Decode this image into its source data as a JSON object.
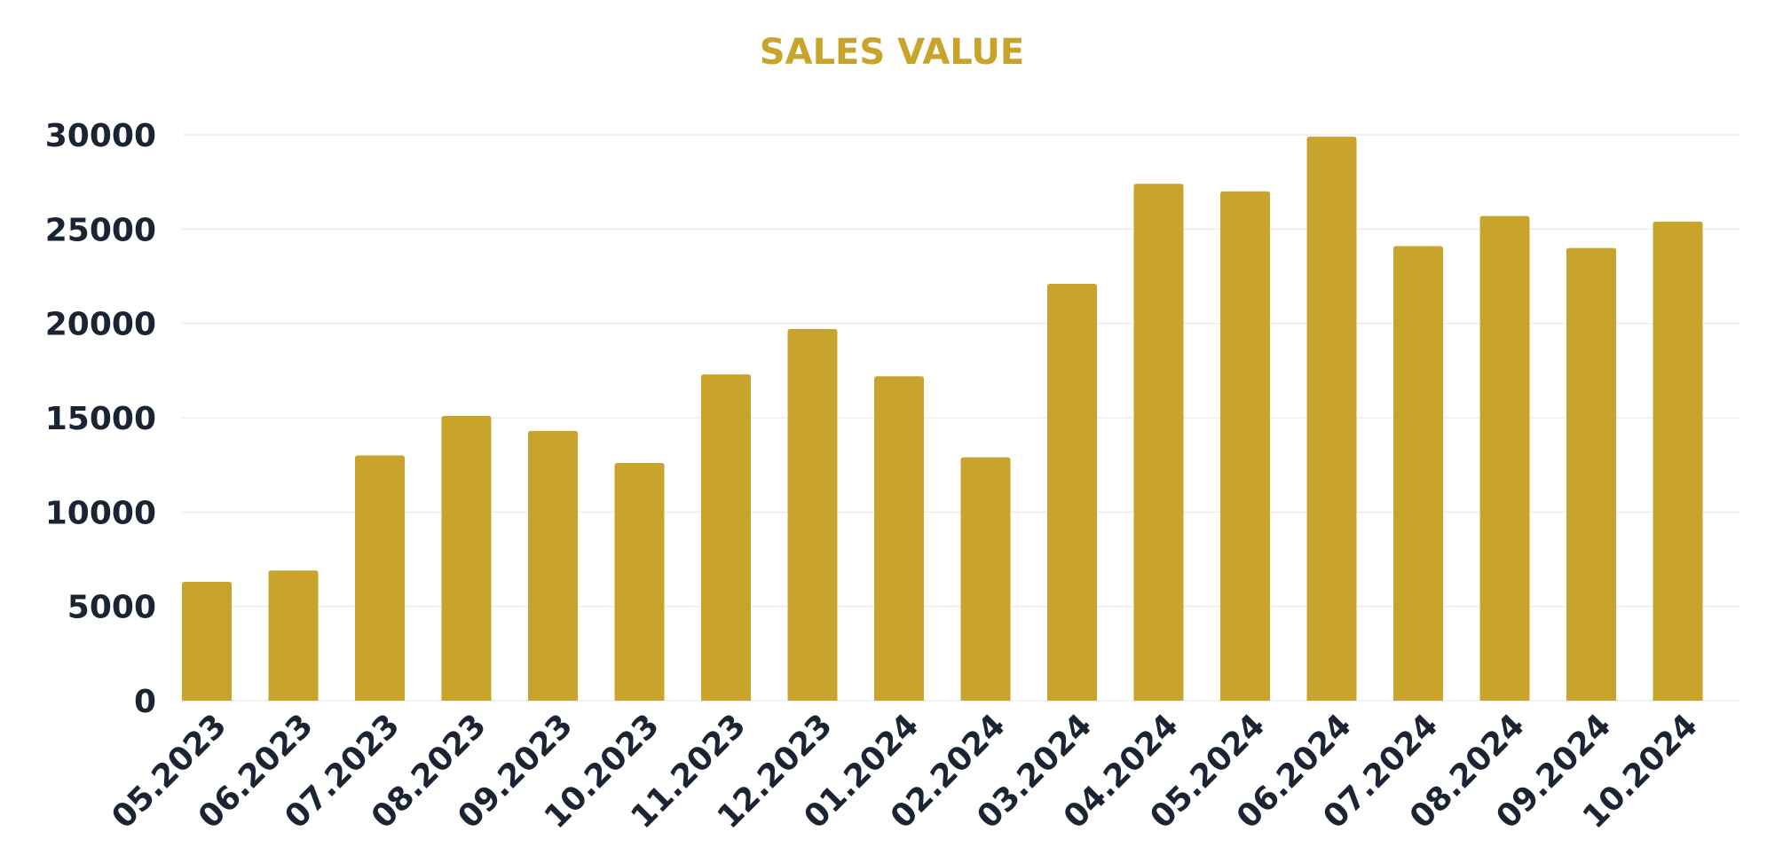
{
  "colors": {
    "bar": "#C9A42C",
    "title": "#C9A42C",
    "axis_text": "#1B2432",
    "grid": "#EDEDED"
  },
  "chart_data": {
    "type": "bar",
    "title": "SALES VALUE",
    "xlabel": "",
    "ylabel": "",
    "categories": [
      "05.2023",
      "06.2023",
      "07.2023",
      "08.2023",
      "09.2023",
      "10.2023",
      "11.2023",
      "12.2023",
      "01.2024",
      "02.2024",
      "03.2024",
      "04.2024",
      "05.2024",
      "06.2024",
      "07.2024",
      "08.2024",
      "09.2024",
      "10.2024"
    ],
    "values": [
      6300,
      6900,
      13000,
      15100,
      14300,
      12600,
      17300,
      19700,
      17200,
      12900,
      22100,
      27400,
      27000,
      29900,
      24100,
      25700,
      24000,
      25400
    ],
    "ylim": [
      0,
      30000
    ],
    "yticks": [
      "0",
      "5000",
      "10000",
      "15000",
      "20000",
      "25000",
      "30000"
    ],
    "grid": true,
    "legend": "none"
  }
}
